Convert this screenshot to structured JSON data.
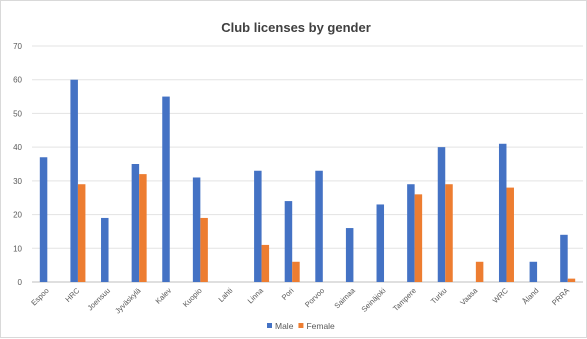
{
  "chart_data": {
    "type": "bar",
    "title": "Club licenses by gender",
    "xlabel": "",
    "ylabel": "",
    "ylim": [
      0,
      70
    ],
    "yticks": [
      0,
      10,
      20,
      30,
      40,
      50,
      60,
      70
    ],
    "grid": true,
    "legend_position": "bottom",
    "categories": [
      "Espoo",
      "HRC",
      "Joensuu",
      "Jyväskylä",
      "Kalev",
      "Kuopio",
      "Lahti",
      "Linna",
      "Pori",
      "Porvoo",
      "Saimaa",
      "Seinäjoki",
      "Tampere",
      "Turku",
      "Vaasa",
      "WRC",
      "Åland",
      "PRRA"
    ],
    "series": [
      {
        "name": "Male",
        "color": "#4472C4",
        "values": [
          37,
          60,
          19,
          35,
          55,
          31,
          0,
          33,
          24,
          33,
          16,
          23,
          29,
          40,
          0,
          41,
          6,
          14
        ]
      },
      {
        "name": "Female",
        "color": "#ED7D31",
        "values": [
          0,
          29,
          0,
          32,
          0,
          19,
          0,
          11,
          6,
          0,
          0,
          0,
          26,
          29,
          6,
          28,
          0,
          1
        ]
      }
    ]
  }
}
